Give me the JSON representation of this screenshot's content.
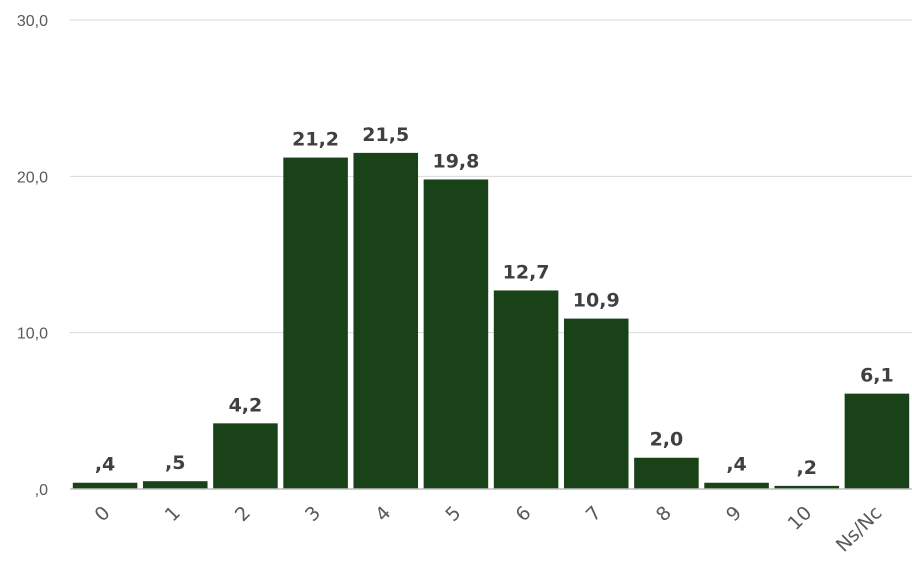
{
  "chart_data": {
    "type": "bar",
    "categories": [
      "0",
      "1",
      "2",
      "3",
      "4",
      "5",
      "6",
      "7",
      "8",
      "9",
      "10",
      "Ns/Nc"
    ],
    "values": [
      0.4,
      0.5,
      4.2,
      21.2,
      21.5,
      19.8,
      12.7,
      10.9,
      2.0,
      0.4,
      0.2,
      6.1
    ],
    "data_labels": [
      ",4",
      ",5",
      "4,2",
      "21,2",
      "21,5",
      "19,8",
      "12,7",
      "10,9",
      "2,0",
      ",4",
      ",2",
      "6,1"
    ],
    "yticks": [
      0,
      10,
      20,
      30
    ],
    "ytick_labels": [
      ",0",
      "10,0",
      "20,0",
      "30,0"
    ],
    "ylim": [
      0,
      30
    ],
    "title": "",
    "xlabel": "",
    "ylabel": "",
    "grid": true,
    "legend": "none",
    "bar_color": "#1a4219"
  }
}
